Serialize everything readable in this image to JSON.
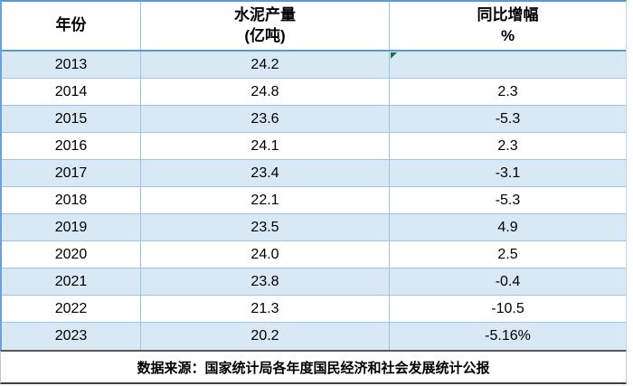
{
  "colors": {
    "accent_border": "#5b9bd5",
    "grid_line": "#9dc3e6",
    "banded_row_fill": "#d9e8f5",
    "footer_border": "#595959",
    "error_indicator_green": "#1f7145",
    "text": "#000000"
  },
  "table": {
    "header": {
      "year": "年份",
      "production_line1": "水泥产量",
      "production_line2": "(亿吨)",
      "growth_line1": "同比增幅",
      "growth_line2": "%"
    },
    "rows": [
      {
        "year": "2013",
        "production": "24.2",
        "growth": "",
        "error_indicator": true
      },
      {
        "year": "2014",
        "production": "24.8",
        "growth": "2.3",
        "error_indicator": false
      },
      {
        "year": "2015",
        "production": "23.6",
        "growth": "-5.3",
        "error_indicator": false
      },
      {
        "year": "2016",
        "production": "24.1",
        "growth": "2.3",
        "error_indicator": false
      },
      {
        "year": "2017",
        "production": "23.4",
        "growth": "-3.1",
        "error_indicator": false
      },
      {
        "year": "2018",
        "production": "22.1",
        "growth": "-5.3",
        "error_indicator": false
      },
      {
        "year": "2019",
        "production": "23.5",
        "growth": "4.9",
        "error_indicator": false
      },
      {
        "year": "2020",
        "production": "24.0",
        "growth": "2.5",
        "error_indicator": false
      },
      {
        "year": "2021",
        "production": "23.8",
        "growth": "-0.4",
        "error_indicator": false
      },
      {
        "year": "2022",
        "production": "21.3",
        "growth": "-10.5",
        "error_indicator": false
      },
      {
        "year": "2023",
        "production": "20.2",
        "growth": "-5.16%",
        "error_indicator": false
      }
    ]
  },
  "footer": {
    "note": "数据来源：国家统计局各年度国民经济和社会发展统计公报"
  },
  "chart_data": {
    "type": "table",
    "columns": [
      "年份",
      "水泥产量(亿吨)",
      "同比增幅%"
    ],
    "rows": [
      [
        "2013",
        24.2,
        null
      ],
      [
        "2014",
        24.8,
        2.3
      ],
      [
        "2015",
        23.6,
        -5.3
      ],
      [
        "2016",
        24.1,
        2.3
      ],
      [
        "2017",
        23.4,
        -3.1
      ],
      [
        "2018",
        22.1,
        -5.3
      ],
      [
        "2019",
        23.5,
        4.9
      ],
      [
        "2020",
        24.0,
        2.5
      ],
      [
        "2021",
        23.8,
        -0.4
      ],
      [
        "2022",
        21.3,
        -10.5
      ],
      [
        "2023",
        20.2,
        -5.16
      ]
    ],
    "notes": "2023 growth value displayed with explicit % sign (-5.16%); 2013 growth cell empty with green error-indicator triangle; banded rows on odd years (2013,2015,2017,2019,2021,2023)",
    "source_note": "数据来源：国家统计局各年度国民经济和社会发展统计公报"
  }
}
